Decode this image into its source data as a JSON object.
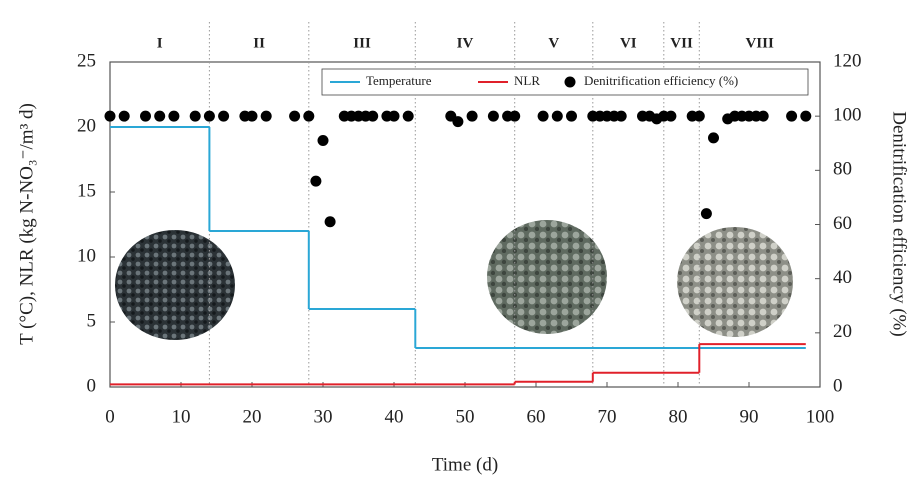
{
  "chart_data": {
    "type": "line",
    "y_label": "T (°C), NLR (kg N-NO₃⁻/m³ d)",
    "y2_label": "Denitrification efficiency (%)",
    "x_label": "Time (d)",
    "xlim": [
      0,
      100
    ],
    "xticks": [
      0,
      10,
      20,
      30,
      40,
      50,
      60,
      70,
      80,
      90,
      100
    ],
    "ylim": [
      0,
      25
    ],
    "yticks": [
      0,
      5,
      10,
      15,
      20,
      25
    ],
    "y2lim": [
      0,
      120
    ],
    "y2ticks": [
      0,
      20,
      40,
      60,
      80,
      100,
      120
    ],
    "phase_labels": [
      "I",
      "II",
      "III",
      "IV",
      "V",
      "VI",
      "VII",
      "VIII"
    ],
    "phase_bounds": [
      14,
      28,
      43,
      57,
      68,
      78,
      83
    ],
    "legend": "top-right",
    "series": [
      {
        "name": "Temperature",
        "color": "#2aa7d6",
        "kind": "step",
        "x": [
          0,
          14,
          28,
          43,
          98
        ],
        "values": [
          20,
          12,
          6,
          3,
          3
        ]
      },
      {
        "name": "NLR",
        "color": "#e0202a",
        "kind": "step",
        "x": [
          0,
          57,
          68,
          83,
          98
        ],
        "values": [
          0.2,
          0.4,
          1.1,
          3.3,
          3.3
        ]
      },
      {
        "name": "Denitrification efficiency (%)",
        "color": "#000000",
        "kind": "scatter",
        "axis": "y2",
        "x": [
          0,
          2,
          5,
          7,
          9,
          12,
          14,
          16,
          19,
          20,
          22,
          26,
          28,
          29,
          30,
          31,
          33,
          34,
          35,
          36,
          37,
          39,
          40,
          42,
          48,
          49,
          51,
          54,
          56,
          57,
          61,
          63,
          65,
          68,
          69,
          70,
          71,
          72,
          75,
          76,
          77,
          78,
          79,
          82,
          83,
          84,
          85,
          87,
          88,
          89,
          90,
          91,
          92,
          96,
          98
        ],
        "values": [
          100,
          100,
          100,
          100,
          100,
          100,
          100,
          100,
          100,
          100,
          100,
          100,
          100,
          76,
          91,
          61,
          100,
          100,
          100,
          100,
          100,
          100,
          100,
          100,
          100,
          98,
          100,
          100,
          100,
          100,
          100,
          100,
          100,
          100,
          100,
          100,
          100,
          100,
          100,
          100,
          99,
          100,
          100,
          100,
          100,
          64,
          92,
          99,
          100,
          100,
          100,
          100,
          100,
          100,
          100
        ]
      }
    ]
  }
}
